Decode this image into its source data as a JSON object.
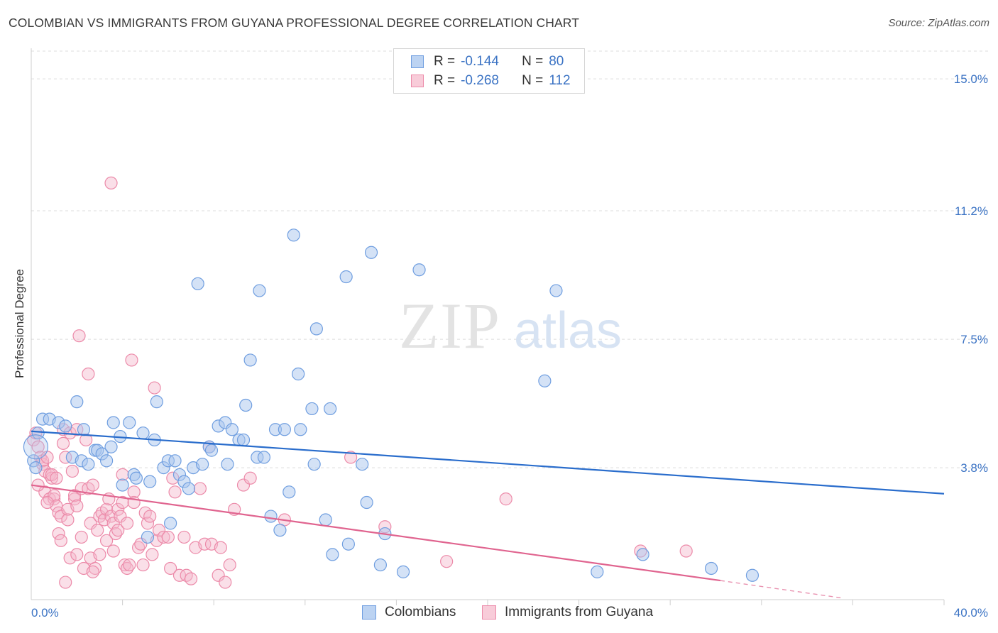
{
  "title": "COLOMBIAN VS IMMIGRANTS FROM GUYANA PROFESSIONAL DEGREE CORRELATION CHART",
  "source": "Source: ZipAtlas.com",
  "watermark": {
    "zip": "ZIP",
    "atlas": "atlas"
  },
  "legend": {
    "r_label": "R =",
    "n_label": "N =",
    "rows": [
      {
        "r": "-0.144",
        "n": "80"
      },
      {
        "r": "-0.268",
        "n": "112"
      }
    ]
  },
  "bottom_legend": [
    "Colombians",
    "Immigrants from Guyana"
  ],
  "colors": {
    "blue_fill": "#a9c6ee",
    "blue_stroke": "#6f9ee0",
    "blue_line": "#2a6dcc",
    "pink_fill": "#f4b8cb",
    "pink_stroke": "#ec8aa9",
    "pink_line": "#e0648f",
    "axis_text": "#3b73c4",
    "grid": "#dcdcdc"
  },
  "chart_data": {
    "type": "scatter",
    "title": "COLOMBIAN VS IMMIGRANTS FROM GUYANA PROFESSIONAL DEGREE CORRELATION CHART",
    "xlabel": "",
    "ylabel": "Professional Degree",
    "xlim": [
      0,
      40
    ],
    "ylim": [
      0,
      15.8
    ],
    "x_tick_labels": [
      "0.0%",
      "40.0%"
    ],
    "y_ticks": [
      3.8,
      7.5,
      11.2,
      15.0
    ],
    "y_tick_labels": [
      "3.8%",
      "7.5%",
      "11.2%",
      "15.0%"
    ],
    "grid": "horizontal dashed",
    "legend_position": "top-center",
    "series": [
      {
        "name": "Colombians",
        "r": -0.144,
        "n": 80,
        "trend": {
          "x": [
            0,
            40
          ],
          "y": [
            4.85,
            3.05
          ]
        },
        "points": [
          [
            0.3,
            4.8
          ],
          [
            0.5,
            5.2
          ],
          [
            0.8,
            5.2
          ],
          [
            1.2,
            5.1
          ],
          [
            1.5,
            5.0
          ],
          [
            1.8,
            4.1
          ],
          [
            2.0,
            5.7
          ],
          [
            2.2,
            4.0
          ],
          [
            2.3,
            4.9
          ],
          [
            2.5,
            3.9
          ],
          [
            2.8,
            4.3
          ],
          [
            2.9,
            4.3
          ],
          [
            3.1,
            4.2
          ],
          [
            3.3,
            4.0
          ],
          [
            3.5,
            4.4
          ],
          [
            3.6,
            5.1
          ],
          [
            3.9,
            4.7
          ],
          [
            4.0,
            3.3
          ],
          [
            4.3,
            5.1
          ],
          [
            4.5,
            3.6
          ],
          [
            4.6,
            3.5
          ],
          [
            4.9,
            4.8
          ],
          [
            5.1,
            1.8
          ],
          [
            5.2,
            3.4
          ],
          [
            5.4,
            4.6
          ],
          [
            5.5,
            5.7
          ],
          [
            5.8,
            3.8
          ],
          [
            6.0,
            4.0
          ],
          [
            6.1,
            2.2
          ],
          [
            6.3,
            4.0
          ],
          [
            6.5,
            3.6
          ],
          [
            6.7,
            3.4
          ],
          [
            6.9,
            3.2
          ],
          [
            7.1,
            3.8
          ],
          [
            7.3,
            9.1
          ],
          [
            7.5,
            3.9
          ],
          [
            7.8,
            4.4
          ],
          [
            7.9,
            4.3
          ],
          [
            8.2,
            5.0
          ],
          [
            8.5,
            5.1
          ],
          [
            8.6,
            3.9
          ],
          [
            8.8,
            4.9
          ],
          [
            9.1,
            4.6
          ],
          [
            9.3,
            4.6
          ],
          [
            9.4,
            5.6
          ],
          [
            9.6,
            6.9
          ],
          [
            9.9,
            4.1
          ],
          [
            10.0,
            8.9
          ],
          [
            10.2,
            4.1
          ],
          [
            10.5,
            2.4
          ],
          [
            10.7,
            4.9
          ],
          [
            10.9,
            2.0
          ],
          [
            11.1,
            4.9
          ],
          [
            11.3,
            3.1
          ],
          [
            11.5,
            10.5
          ],
          [
            11.7,
            6.5
          ],
          [
            11.8,
            4.9
          ],
          [
            12.3,
            5.5
          ],
          [
            12.4,
            3.9
          ],
          [
            12.5,
            7.8
          ],
          [
            12.9,
            2.3
          ],
          [
            13.1,
            5.5
          ],
          [
            13.2,
            1.3
          ],
          [
            13.8,
            9.3
          ],
          [
            13.9,
            1.6
          ],
          [
            14.5,
            3.9
          ],
          [
            14.7,
            2.8
          ],
          [
            14.9,
            10.0
          ],
          [
            15.3,
            1.0
          ],
          [
            15.5,
            1.9
          ],
          [
            16.3,
            0.8
          ],
          [
            17.0,
            9.5
          ],
          [
            22.5,
            6.3
          ],
          [
            23.0,
            8.9
          ],
          [
            24.8,
            0.8
          ],
          [
            26.8,
            1.3
          ],
          [
            29.8,
            0.9
          ],
          [
            31.6,
            0.7
          ],
          [
            0.1,
            4.0
          ],
          [
            0.2,
            3.8
          ]
        ]
      },
      {
        "name": "Immigrants from Guyana",
        "r": -0.268,
        "n": 112,
        "trend": {
          "x": [
            0,
            30.2
          ],
          "y": [
            3.3,
            0.55
          ]
        },
        "trend_dashed": {
          "x": [
            30.2,
            35.5
          ],
          "y": [
            0.55,
            0.05
          ]
        },
        "points": [
          [
            0.1,
            4.6
          ],
          [
            0.2,
            4.8
          ],
          [
            0.3,
            4.4
          ],
          [
            0.4,
            4.1
          ],
          [
            0.5,
            3.9
          ],
          [
            0.5,
            4.0
          ],
          [
            0.6,
            3.7
          ],
          [
            0.6,
            3.1
          ],
          [
            0.7,
            4.1
          ],
          [
            0.8,
            2.9
          ],
          [
            0.8,
            3.6
          ],
          [
            0.9,
            3.5
          ],
          [
            0.9,
            3.6
          ],
          [
            1.0,
            2.9
          ],
          [
            1.0,
            3.0
          ],
          [
            1.1,
            3.5
          ],
          [
            1.1,
            2.7
          ],
          [
            1.2,
            2.5
          ],
          [
            1.2,
            1.9
          ],
          [
            1.3,
            2.4
          ],
          [
            1.4,
            4.5
          ],
          [
            1.4,
            4.9
          ],
          [
            1.5,
            4.1
          ],
          [
            1.5,
            0.5
          ],
          [
            1.6,
            2.6
          ],
          [
            1.6,
            2.3
          ],
          [
            1.7,
            4.8
          ],
          [
            1.7,
            1.2
          ],
          [
            1.8,
            3.7
          ],
          [
            1.9,
            2.9
          ],
          [
            1.9,
            3.0
          ],
          [
            2.0,
            4.9
          ],
          [
            2.0,
            1.3
          ],
          [
            2.0,
            2.7
          ],
          [
            2.1,
            7.6
          ],
          [
            2.2,
            3.2
          ],
          [
            2.2,
            1.8
          ],
          [
            2.3,
            0.9
          ],
          [
            2.4,
            4.6
          ],
          [
            2.5,
            3.2
          ],
          [
            2.5,
            6.5
          ],
          [
            2.6,
            2.2
          ],
          [
            2.6,
            1.2
          ],
          [
            2.7,
            3.3
          ],
          [
            2.8,
            0.9
          ],
          [
            2.9,
            2.0
          ],
          [
            3.0,
            1.3
          ],
          [
            3.0,
            2.4
          ],
          [
            3.1,
            2.5
          ],
          [
            3.2,
            2.3
          ],
          [
            3.3,
            1.7
          ],
          [
            3.3,
            2.6
          ],
          [
            3.4,
            2.9
          ],
          [
            3.5,
            2.4
          ],
          [
            3.5,
            12.0
          ],
          [
            3.6,
            2.2
          ],
          [
            3.7,
            1.9
          ],
          [
            3.8,
            2.6
          ],
          [
            3.8,
            2.0
          ],
          [
            3.9,
            2.4
          ],
          [
            4.0,
            2.8
          ],
          [
            4.0,
            3.6
          ],
          [
            4.1,
            1.0
          ],
          [
            4.2,
            0.9
          ],
          [
            4.2,
            2.2
          ],
          [
            4.3,
            1.0
          ],
          [
            4.4,
            6.9
          ],
          [
            4.5,
            3.1
          ],
          [
            4.5,
            2.8
          ],
          [
            4.7,
            1.5
          ],
          [
            4.8,
            1.6
          ],
          [
            4.9,
            1.0
          ],
          [
            5.0,
            2.5
          ],
          [
            5.1,
            2.2
          ],
          [
            5.2,
            2.4
          ],
          [
            5.3,
            1.3
          ],
          [
            5.4,
            6.1
          ],
          [
            5.5,
            1.7
          ],
          [
            5.6,
            2.0
          ],
          [
            5.8,
            1.8
          ],
          [
            6.0,
            1.8
          ],
          [
            6.1,
            0.9
          ],
          [
            6.2,
            3.5
          ],
          [
            6.3,
            3.1
          ],
          [
            6.5,
            0.7
          ],
          [
            6.7,
            1.8
          ],
          [
            6.8,
            0.7
          ],
          [
            7.0,
            0.6
          ],
          [
            7.2,
            1.5
          ],
          [
            7.4,
            3.2
          ],
          [
            7.6,
            1.6
          ],
          [
            7.8,
            4.4
          ],
          [
            7.9,
            1.6
          ],
          [
            8.2,
            0.7
          ],
          [
            8.3,
            1.5
          ],
          [
            8.5,
            0.5
          ],
          [
            8.7,
            1.0
          ],
          [
            8.9,
            2.6
          ],
          [
            9.3,
            3.3
          ],
          [
            9.6,
            3.5
          ],
          [
            11.1,
            2.3
          ],
          [
            14.0,
            4.1
          ],
          [
            15.5,
            2.1
          ],
          [
            18.2,
            1.1
          ],
          [
            20.8,
            2.9
          ],
          [
            26.7,
            1.4
          ],
          [
            28.7,
            1.4
          ],
          [
            0.3,
            3.3
          ],
          [
            0.7,
            2.8
          ],
          [
            1.3,
            1.7
          ],
          [
            2.7,
            0.8
          ],
          [
            3.6,
            1.4
          ]
        ]
      }
    ]
  }
}
